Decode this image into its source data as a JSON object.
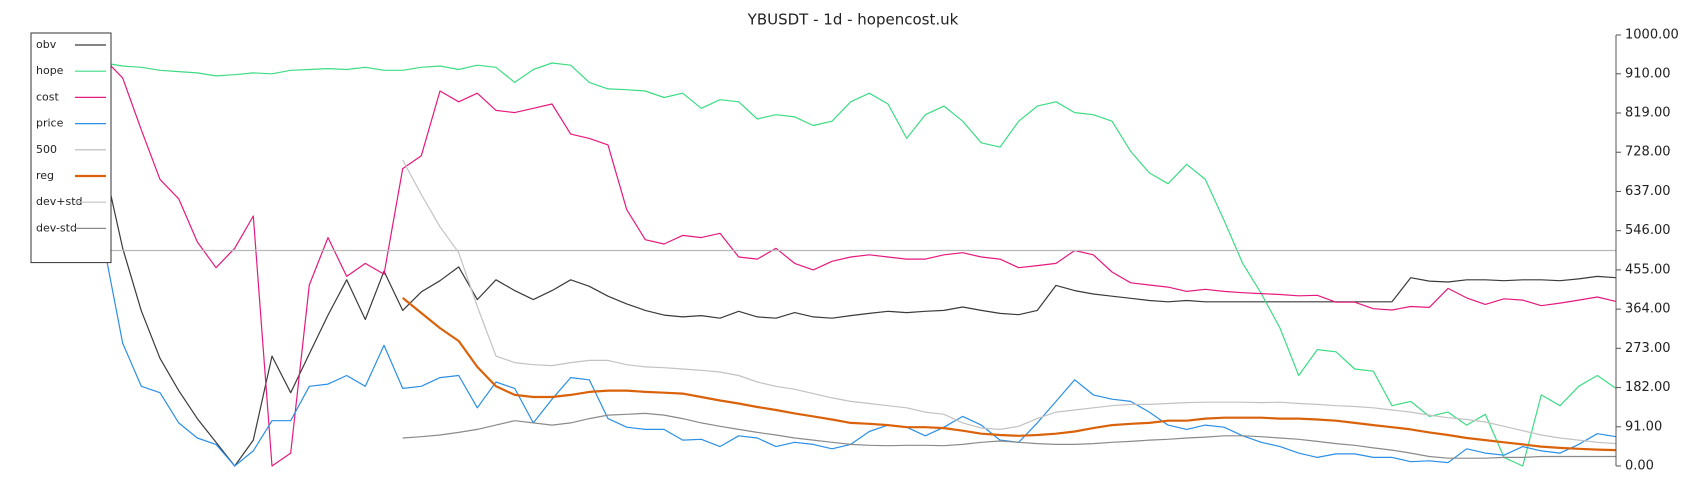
{
  "chart_data": {
    "type": "line",
    "title": "YBUSDT - 1d - hopencost.uk",
    "categories": [
      null,
      null,
      null,
      null,
      null,
      null,
      null,
      null,
      null,
      null,
      null,
      null,
      null,
      null,
      null,
      null,
      null,
      null,
      null,
      null,
      null,
      null,
      null,
      null,
      null,
      null,
      null,
      null,
      null,
      null,
      null,
      null,
      null,
      null,
      null,
      null,
      null,
      null,
      null,
      null,
      null,
      null,
      null,
      null,
      null,
      null,
      null,
      null,
      null,
      null,
      null,
      null,
      null,
      null,
      null,
      null,
      null,
      null,
      null,
      null,
      null,
      null,
      null,
      null,
      null,
      null,
      null,
      null,
      null,
      null,
      null,
      null,
      null,
      null,
      null,
      null,
      null,
      null,
      null,
      null,
      null,
      null
    ],
    "ylim": [
      0,
      1000
    ],
    "yticks": [
      {
        "value": 0,
        "label": "0.00"
      },
      {
        "value": 91,
        "label": "91.00"
      },
      {
        "value": 182,
        "label": "182.00"
      },
      {
        "value": 273,
        "label": "273.00"
      },
      {
        "value": 364,
        "label": "364.00"
      },
      {
        "value": 455,
        "label": "455.00"
      },
      {
        "value": 546,
        "label": "546.00"
      },
      {
        "value": 637,
        "label": "637.00"
      },
      {
        "value": 728,
        "label": "728.00"
      },
      {
        "value": 819,
        "label": "819.00"
      },
      {
        "value": 910,
        "label": "910.00"
      },
      {
        "value": 1000,
        "label": "1000.00"
      }
    ],
    "y_axis_side": "right",
    "grid": false,
    "legend_position": "upper left",
    "series": [
      {
        "name": "obv",
        "color": "#3a3a3a",
        "width": 1.2,
        "values": [
          700,
          505,
          360,
          250,
          175,
          110,
          55,
          0,
          60,
          255,
          170,
          260,
          350,
          432,
          340,
          452,
          361,
          404,
          430,
          462,
          386,
          432,
          407,
          386,
          407,
          432,
          417,
          394,
          376,
          361,
          350,
          346,
          349,
          343,
          359,
          346,
          343,
          356,
          346,
          343,
          349,
          354,
          359,
          356,
          359,
          361,
          369,
          361,
          354,
          351,
          361,
          419,
          407,
          399,
          394,
          389,
          384,
          381,
          384,
          381,
          381,
          381,
          381,
          381,
          381,
          381,
          381,
          381,
          381,
          381,
          437,
          429,
          427,
          432,
          432,
          430,
          432,
          432,
          430,
          434,
          440,
          437
        ]
      },
      {
        "name": "hope",
        "color": "#3ddc84",
        "width": 1.2,
        "values": [
          935,
          928,
          925,
          918,
          915,
          912,
          905,
          908,
          912,
          910,
          918,
          920,
          922,
          920,
          925,
          918,
          918,
          925,
          928,
          920,
          930,
          925,
          890,
          920,
          935,
          930,
          890,
          875,
          873,
          870,
          855,
          865,
          830,
          850,
          845,
          805,
          815,
          810,
          790,
          800,
          845,
          865,
          840,
          760,
          815,
          835,
          800,
          750,
          740,
          800,
          835,
          845,
          820,
          815,
          800,
          730,
          680,
          655,
          700,
          665,
          570,
          470,
          400,
          320,
          210,
          270,
          265,
          225,
          220,
          140,
          150,
          115,
          125,
          95,
          120,
          20,
          0,
          165,
          140,
          185,
          210,
          180
        ]
      },
      {
        "name": "cost",
        "color": "#e6197d",
        "width": 1.2,
        "values": [
          945,
          900,
          780,
          665,
          620,
          520,
          460,
          505,
          580,
          0,
          30,
          420,
          530,
          440,
          470,
          445,
          690,
          720,
          870,
          845,
          865,
          825,
          820,
          830,
          840,
          770,
          760,
          745,
          595,
          525,
          515,
          535,
          530,
          540,
          485,
          480,
          505,
          470,
          455,
          475,
          485,
          490,
          485,
          480,
          480,
          490,
          495,
          485,
          480,
          460,
          465,
          470,
          500,
          490,
          450,
          425,
          420,
          415,
          405,
          410,
          405,
          402,
          400,
          398,
          395,
          396,
          380,
          380,
          365,
          362,
          370,
          368,
          412,
          390,
          375,
          388,
          385,
          372,
          378,
          385,
          392,
          382
        ]
      },
      {
        "name": "price",
        "color": "#2b8fe6",
        "width": 1.2,
        "values": [
          510,
          285,
          185,
          170,
          100,
          65,
          50,
          0,
          35,
          105,
          105,
          185,
          190,
          210,
          185,
          280,
          180,
          185,
          205,
          210,
          135,
          195,
          180,
          100,
          155,
          205,
          200,
          110,
          90,
          85,
          85,
          60,
          62,
          45,
          70,
          65,
          45,
          55,
          50,
          40,
          50,
          80,
          95,
          90,
          70,
          90,
          115,
          95,
          60,
          55,
          100,
          150,
          200,
          165,
          155,
          150,
          125,
          95,
          85,
          95,
          90,
          70,
          55,
          45,
          30,
          20,
          28,
          28,
          20,
          20,
          10,
          12,
          8,
          40,
          30,
          25,
          45,
          35,
          30,
          50,
          75,
          68
        ]
      },
      {
        "name": "500",
        "color": "#b8b8b8",
        "width": 1.2,
        "values": [
          500,
          500,
          500,
          500,
          500,
          500,
          500,
          500,
          500,
          500,
          500,
          500,
          500,
          500,
          500,
          500,
          500,
          500,
          500,
          500,
          500,
          500,
          500,
          500,
          500,
          500,
          500,
          500,
          500,
          500,
          500,
          500,
          500,
          500,
          500,
          500,
          500,
          500,
          500,
          500,
          500,
          500,
          500,
          500,
          500,
          500,
          500,
          500,
          500,
          500,
          500,
          500,
          500,
          500,
          500,
          500,
          500,
          500,
          500,
          500,
          500,
          500,
          500,
          500,
          500,
          500,
          500,
          500,
          500,
          500,
          500,
          500,
          500,
          500,
          500,
          500,
          500,
          500,
          500,
          500,
          500,
          500
        ]
      },
      {
        "name": "reg",
        "color": "#d9620b",
        "width": 2.2,
        "values": [
          null,
          null,
          null,
          null,
          null,
          null,
          null,
          null,
          null,
          null,
          null,
          null,
          null,
          null,
          null,
          null,
          390,
          355,
          320,
          290,
          230,
          185,
          165,
          160,
          160,
          165,
          172,
          175,
          175,
          172,
          170,
          168,
          160,
          152,
          145,
          137,
          130,
          122,
          115,
          108,
          100,
          98,
          95,
          90,
          90,
          88,
          82,
          75,
          72,
          70,
          72,
          75,
          80,
          88,
          95,
          98,
          100,
          105,
          105,
          110,
          112,
          112,
          112,
          110,
          110,
          108,
          105,
          100,
          95,
          90,
          85,
          78,
          72,
          65,
          60,
          55,
          50,
          45,
          42,
          40,
          38,
          37
        ]
      },
      {
        "name": "dev+std",
        "color": "#c2c2c2",
        "width": 1.2,
        "values": [
          null,
          null,
          null,
          null,
          null,
          null,
          null,
          null,
          null,
          null,
          null,
          null,
          null,
          null,
          null,
          null,
          710,
          630,
          555,
          495,
          370,
          255,
          240,
          235,
          233,
          240,
          245,
          245,
          235,
          230,
          228,
          225,
          222,
          218,
          210,
          195,
          185,
          178,
          168,
          158,
          150,
          145,
          140,
          135,
          125,
          120,
          100,
          88,
          85,
          92,
          110,
          125,
          130,
          135,
          140,
          143,
          143,
          145,
          147,
          148,
          148,
          148,
          147,
          148,
          145,
          143,
          140,
          138,
          135,
          130,
          125,
          118,
          112,
          108,
          102,
          92,
          82,
          72,
          65,
          60,
          55,
          52
        ]
      },
      {
        "name": "dev-std",
        "color": "#8a8a8a",
        "width": 1.2,
        "values": [
          null,
          null,
          null,
          null,
          null,
          null,
          null,
          null,
          null,
          null,
          null,
          null,
          null,
          null,
          null,
          null,
          65,
          68,
          72,
          78,
          85,
          95,
          105,
          100,
          95,
          100,
          110,
          118,
          120,
          122,
          118,
          110,
          100,
          92,
          85,
          78,
          72,
          65,
          60,
          55,
          50,
          48,
          47,
          48,
          48,
          47,
          50,
          55,
          58,
          55,
          52,
          50,
          50,
          52,
          55,
          57,
          60,
          62,
          65,
          67,
          70,
          70,
          68,
          65,
          62,
          57,
          52,
          48,
          42,
          37,
          30,
          22,
          18,
          18,
          18,
          20,
          20,
          22,
          22,
          22,
          22,
          22
        ]
      }
    ]
  }
}
